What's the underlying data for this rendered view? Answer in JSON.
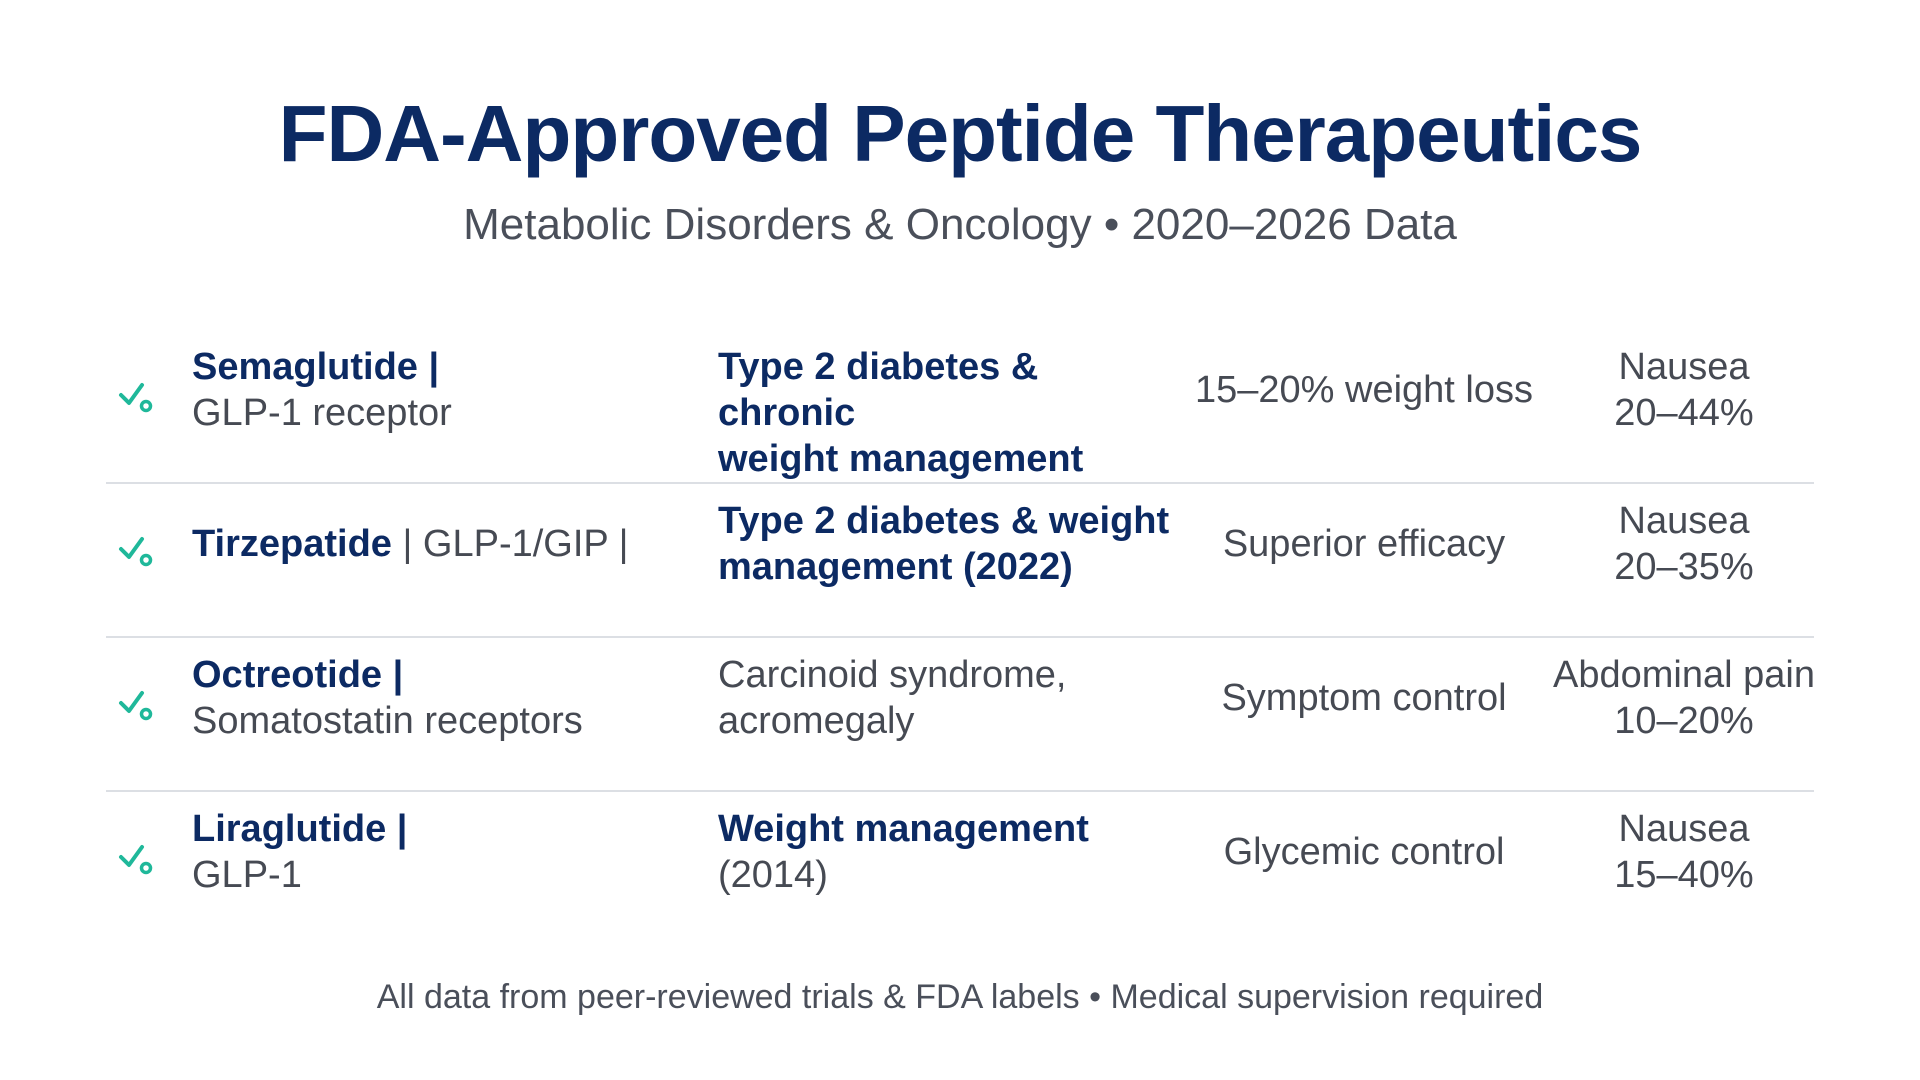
{
  "header": {
    "title": "FDA-Approved Peptide Therapeutics",
    "subtitle": "Metabolic Disorders & Oncology • 2020–2026 Data"
  },
  "rows": [
    {
      "icon": "check-dot-icon",
      "name": "Semaglutide |",
      "target": "GLP-1 receptor",
      "indication_line1": "Type 2 diabetes & chronic",
      "indication_line2": "weight management",
      "efficacy": "15–20% weight loss",
      "side_effect_line1": "Nausea",
      "side_effect_line2": "20–44%"
    },
    {
      "icon": "check-dot-icon",
      "name": "Tirzepatide",
      "target": " | GLP-1/GIP |",
      "indication_line1": "Type 2 diabetes & weight",
      "indication_line2": "management (2022)",
      "efficacy": "Superior efficacy",
      "side_effect_line1": "Nausea",
      "side_effect_line2": "20–35%"
    },
    {
      "icon": "check-dot-icon",
      "name": "Octreotide |",
      "target": "Somatostatin receptors",
      "indication_line1": "Carcinoid syndrome,",
      "indication_line2": "acromegaly",
      "efficacy": "Symptom control",
      "side_effect_line1": "Abdominal pain",
      "side_effect_line2": "10–20%"
    },
    {
      "icon": "check-dot-icon",
      "name": "Liraglutide |",
      "target": "GLP-1",
      "indication_line1": "Weight management",
      "indication_line2": "(2014)",
      "efficacy": "Glycemic control",
      "side_effect_line1": "Nausea",
      "side_effect_line2": "15–40%"
    }
  ],
  "footer": {
    "note": "All data from peer-reviewed trials & FDA labels • Medical supervision required"
  },
  "colors": {
    "title": "#0c2a63",
    "body_text": "#464a53",
    "icon_accent": "#1fb89a",
    "divider": "#dcdfe4"
  }
}
